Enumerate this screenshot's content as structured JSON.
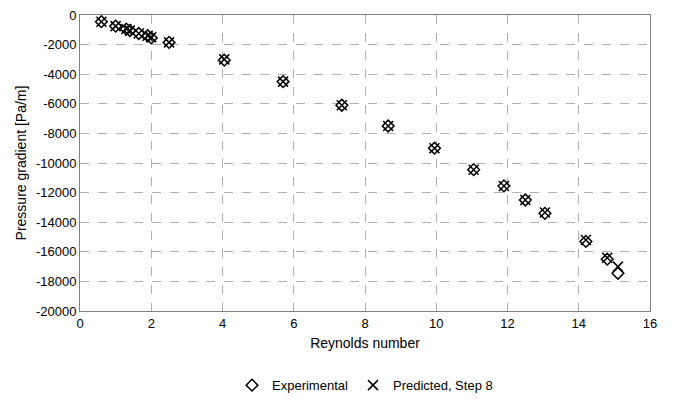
{
  "chart_data": {
    "type": "scatter",
    "x_label": "Reynolds number",
    "y_label": "Pressure gradient [Pa/m]",
    "xlim": [
      0,
      16
    ],
    "xticks": [
      0,
      2,
      4,
      6,
      8,
      10,
      12,
      14,
      16
    ],
    "ylim": [
      -20000,
      0
    ],
    "yticks": [
      -20000,
      -18000,
      -16000,
      -14000,
      -12000,
      -10000,
      -8000,
      -6000,
      -4000,
      -2000,
      0
    ],
    "grid": true,
    "legend": "bottom",
    "series": [
      {
        "name": "Experimental",
        "color": "#000000",
        "marker": "diamond-open",
        "x": [
          0.6,
          1.0,
          1.3,
          1.4,
          1.65,
          1.9,
          2.0,
          2.5,
          4.05,
          5.7,
          7.35,
          8.65,
          9.95,
          11.05,
          11.9,
          12.5,
          13.05,
          14.2,
          14.8,
          15.1
        ],
        "values": [
          -450,
          -750,
          -950,
          -1050,
          -1250,
          -1400,
          -1550,
          -1850,
          -3050,
          -4500,
          -6100,
          -7500,
          -9000,
          -10450,
          -11550,
          -12500,
          -13400,
          -15300,
          -16500,
          -17450
        ]
      },
      {
        "name": "Predicted, Step 8",
        "color": "#000000",
        "marker": "x-thin",
        "x": [
          0.6,
          1.0,
          1.3,
          1.4,
          1.65,
          1.9,
          2.0,
          2.5,
          4.05,
          5.7,
          7.35,
          8.65,
          9.95,
          11.05,
          11.9,
          12.5,
          13.05,
          14.2,
          14.8,
          15.1
        ],
        "values": [
          -450,
          -750,
          -950,
          -1050,
          -1250,
          -1400,
          -1500,
          -1850,
          -3000,
          -4500,
          -6100,
          -7500,
          -9000,
          -10450,
          -11550,
          -12500,
          -13350,
          -15200,
          -16400,
          -17000
        ]
      }
    ]
  }
}
